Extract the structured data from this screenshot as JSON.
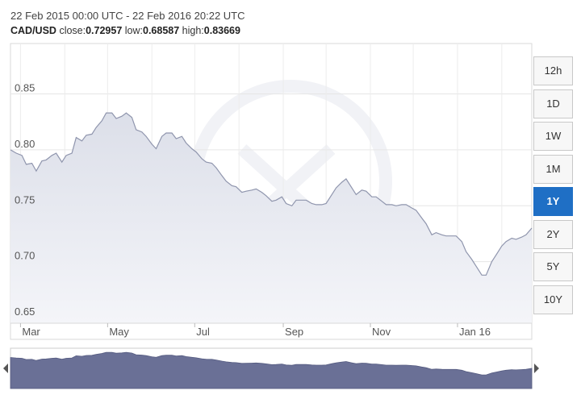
{
  "header": {
    "date_range": "22 Feb 2015 00:00 UTC - 22 Feb 2016 20:22 UTC",
    "pair": "CAD/USD",
    "close_label": "close:",
    "close_value": "0.72957",
    "low_label": "low:",
    "low_value": "0.68587",
    "high_label": "high:",
    "high_value": "0.83669"
  },
  "range_buttons": [
    {
      "label": "12h",
      "active": false
    },
    {
      "label": "1D",
      "active": false
    },
    {
      "label": "1W",
      "active": false
    },
    {
      "label": "1M",
      "active": false
    },
    {
      "label": "1Y",
      "active": true
    },
    {
      "label": "2Y",
      "active": false
    },
    {
      "label": "5Y",
      "active": false
    },
    {
      "label": "10Y",
      "active": false
    }
  ],
  "colors": {
    "active_button": "#1f6fc5",
    "area_fill": "#e3e5ee",
    "line": "#8f95ad",
    "navigator_fill": "#6a7096"
  },
  "chart_data": {
    "type": "area",
    "series": [
      {
        "x": [
          "2015-02-22",
          "2015-02-26",
          "2015-03-02",
          "2015-03-05",
          "2015-03-09",
          "2015-03-12",
          "2015-03-16",
          "2015-03-19",
          "2015-03-23",
          "2015-03-26",
          "2015-03-30",
          "2015-04-02",
          "2015-04-06",
          "2015-04-09",
          "2015-04-13",
          "2015-04-16",
          "2015-04-20",
          "2015-04-23",
          "2015-04-27",
          "2015-04-30",
          "2015-05-04",
          "2015-05-07",
          "2015-05-11",
          "2015-05-14",
          "2015-05-18",
          "2015-05-21",
          "2015-05-25",
          "2015-05-28",
          "2015-06-01",
          "2015-06-04",
          "2015-06-08",
          "2015-06-11",
          "2015-06-15",
          "2015-06-18",
          "2015-06-22",
          "2015-06-25",
          "2015-06-29",
          "2015-07-02",
          "2015-07-06",
          "2015-07-09",
          "2015-07-13",
          "2015-07-16",
          "2015-07-20",
          "2015-07-23",
          "2015-07-27",
          "2015-07-30",
          "2015-08-03",
          "2015-08-06",
          "2015-08-10",
          "2015-08-13",
          "2015-08-17",
          "2015-08-20",
          "2015-08-24",
          "2015-08-27",
          "2015-08-31",
          "2015-09-03",
          "2015-09-07",
          "2015-09-10",
          "2015-09-14",
          "2015-09-17",
          "2015-09-21",
          "2015-09-24",
          "2015-09-28",
          "2015-10-01",
          "2015-10-05",
          "2015-10-08",
          "2015-10-12",
          "2015-10-15",
          "2015-10-19",
          "2015-10-22",
          "2015-10-26",
          "2015-10-29",
          "2015-11-02",
          "2015-11-05",
          "2015-11-09",
          "2015-11-12",
          "2015-11-16",
          "2015-11-19",
          "2015-11-23",
          "2015-11-26",
          "2015-11-30",
          "2015-12-03",
          "2015-12-07",
          "2015-12-10",
          "2015-12-14",
          "2015-12-17",
          "2015-12-21",
          "2015-12-24",
          "2015-12-28",
          "2015-12-31",
          "2016-01-04",
          "2016-01-07",
          "2016-01-11",
          "2016-01-14",
          "2016-01-18",
          "2016-01-21",
          "2016-01-25",
          "2016-01-28",
          "2016-02-01",
          "2016-02-04",
          "2016-02-08",
          "2016-02-11",
          "2016-02-15",
          "2016-02-18",
          "2016-02-22"
        ],
        "y": [
          0.8,
          0.797,
          0.795,
          0.787,
          0.788,
          0.781,
          0.79,
          0.791,
          0.795,
          0.797,
          0.789,
          0.795,
          0.797,
          0.811,
          0.808,
          0.813,
          0.814,
          0.82,
          0.826,
          0.833,
          0.833,
          0.828,
          0.83,
          0.833,
          0.829,
          0.818,
          0.816,
          0.812,
          0.805,
          0.801,
          0.812,
          0.815,
          0.815,
          0.81,
          0.812,
          0.806,
          0.801,
          0.798,
          0.792,
          0.789,
          0.788,
          0.784,
          0.777,
          0.772,
          0.768,
          0.767,
          0.762,
          0.763,
          0.764,
          0.765,
          0.762,
          0.759,
          0.754,
          0.755,
          0.758,
          0.752,
          0.75,
          0.755,
          0.755,
          0.755,
          0.752,
          0.751,
          0.751,
          0.752,
          0.76,
          0.766,
          0.771,
          0.774,
          0.766,
          0.76,
          0.764,
          0.763,
          0.758,
          0.758,
          0.754,
          0.751,
          0.751,
          0.75,
          0.751,
          0.751,
          0.748,
          0.746,
          0.739,
          0.734,
          0.724,
          0.726,
          0.724,
          0.723,
          0.723,
          0.723,
          0.718,
          0.709,
          0.702,
          0.696,
          0.688,
          0.688,
          0.7,
          0.706,
          0.714,
          0.718,
          0.721,
          0.72,
          0.722,
          0.724,
          0.73
        ]
      }
    ],
    "x_tick_labels": [
      "Mar",
      "May",
      "Jul",
      "Sep",
      "Nov",
      "Jan 16"
    ],
    "x_tick_dates": [
      "2015-03-01",
      "2015-05-01",
      "2015-07-01",
      "2015-09-01",
      "2015-11-01",
      "2016-01-01"
    ],
    "y_ticks": [
      0.65,
      0.7,
      0.75,
      0.8,
      0.85
    ],
    "y_tick_labels": [
      "0.65",
      "0.70",
      "0.75",
      "0.80",
      "0.85"
    ],
    "xlim": [
      "2015-02-22",
      "2016-02-22"
    ],
    "ylim": [
      0.645,
      0.895
    ],
    "grid": true,
    "navigator": true
  }
}
